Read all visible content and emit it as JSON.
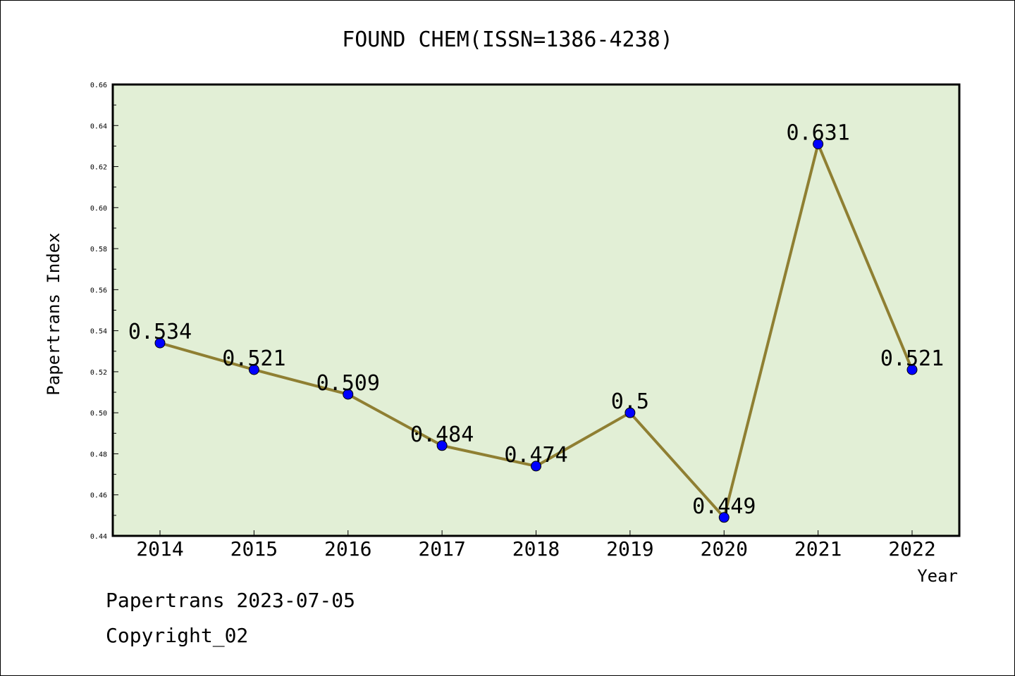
{
  "chart_data": {
    "type": "line",
    "title": "FOUND CHEM(ISSN=1386-4238)",
    "xlabel": "Year",
    "ylabel": "Papertrans Index",
    "categories": [
      "2014",
      "2015",
      "2016",
      "2017",
      "2018",
      "2019",
      "2020",
      "2021",
      "2022"
    ],
    "series": [
      {
        "values": [
          0.534,
          0.521,
          0.509,
          0.484,
          0.474,
          0.5,
          0.449,
          0.631,
          0.521
        ]
      }
    ],
    "data_labels": [
      "0.534",
      "0.521",
      "0.509",
      "0.484",
      "0.474",
      "0.5",
      "0.449",
      "0.631",
      "0.521"
    ],
    "ylim": [
      0.44,
      0.66
    ],
    "yticks": [
      "0.44",
      "0.46",
      "0.48",
      "0.50",
      "0.52",
      "0.54",
      "0.56",
      "0.58",
      "0.60",
      "0.62",
      "0.64",
      "0.66"
    ],
    "grid": false,
    "colors": {
      "plot_background": "#e2efd6",
      "line": "#8f7f32",
      "marker": "#0000ff"
    }
  },
  "footer": {
    "line1": "Papertrans 2023-07-05",
    "line2": "Copyright_02"
  }
}
